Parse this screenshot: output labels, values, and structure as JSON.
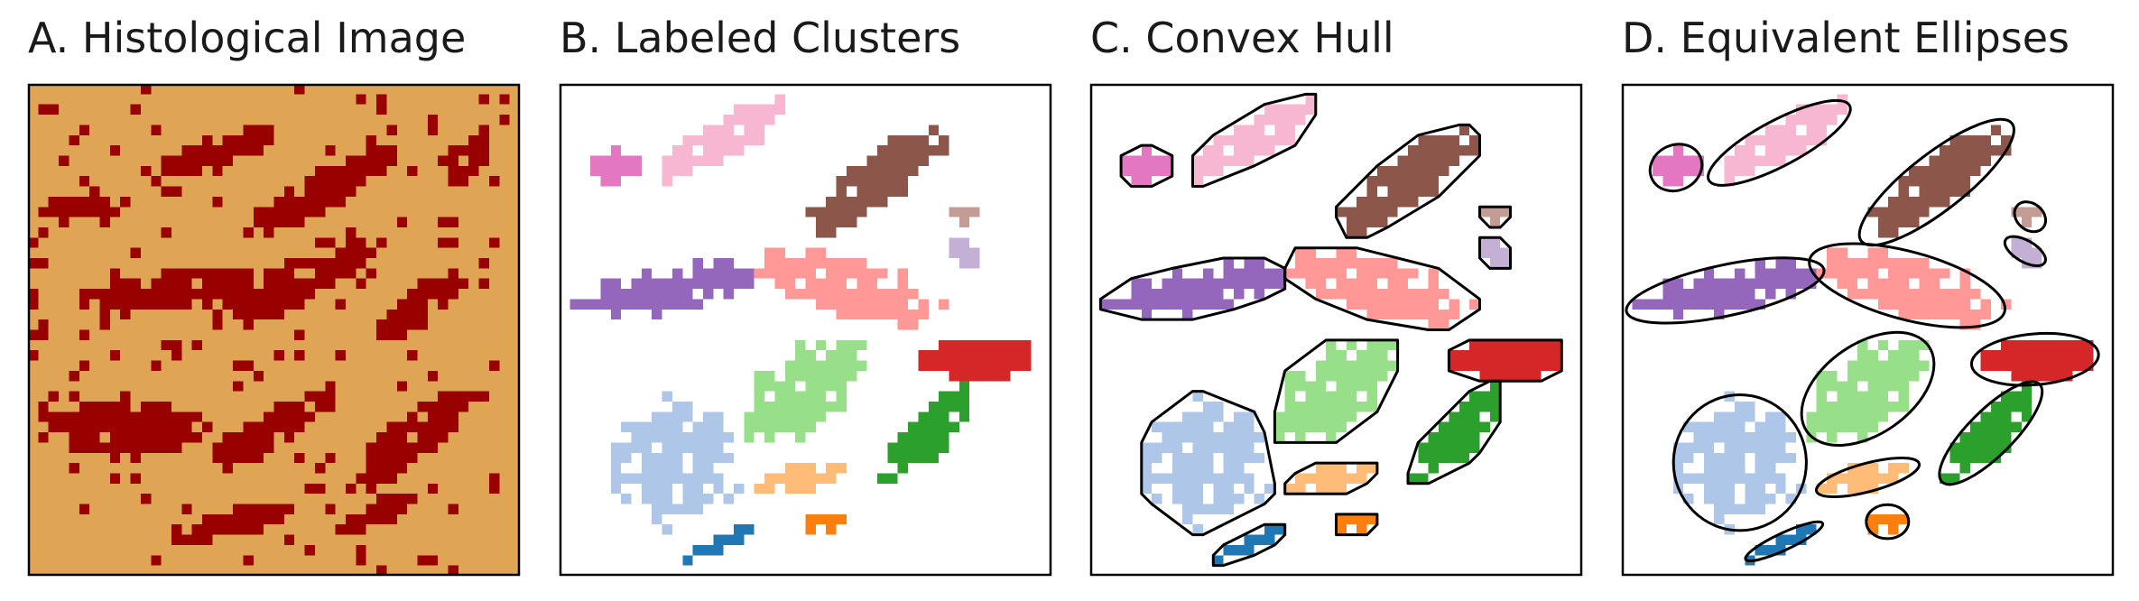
{
  "figure": {
    "panels": [
      {
        "id": "A",
        "title": "A. Histological Image"
      },
      {
        "id": "B",
        "title": "B. Labeled Clusters"
      },
      {
        "id": "C",
        "title": "C. Convex Hull"
      },
      {
        "id": "D",
        "title": "D. Equivalent Ellipses"
      }
    ]
  },
  "chart_data": [
    {
      "type": "heatmap",
      "title": "A. Histological Image",
      "grid": false,
      "colors": {
        "background": "#e0a455",
        "foreground": "#990000"
      },
      "blobs": [
        {
          "x": 0.38,
          "y": 0.14,
          "w": 0.28,
          "h": 0.07,
          "angle": -20
        },
        {
          "x": 0.6,
          "y": 0.22,
          "w": 0.34,
          "h": 0.08,
          "angle": -30
        },
        {
          "x": 0.3,
          "y": 0.42,
          "w": 0.38,
          "h": 0.08,
          "angle": -8
        },
        {
          "x": 0.55,
          "y": 0.4,
          "w": 0.36,
          "h": 0.09,
          "angle": -25
        },
        {
          "x": 0.8,
          "y": 0.45,
          "w": 0.22,
          "h": 0.07,
          "angle": -35
        },
        {
          "x": 0.2,
          "y": 0.7,
          "w": 0.3,
          "h": 0.12,
          "angle": 0
        },
        {
          "x": 0.5,
          "y": 0.7,
          "w": 0.3,
          "h": 0.08,
          "angle": -30
        },
        {
          "x": 0.78,
          "y": 0.72,
          "w": 0.3,
          "h": 0.09,
          "angle": -40
        },
        {
          "x": 0.4,
          "y": 0.9,
          "w": 0.26,
          "h": 0.05,
          "angle": -15
        },
        {
          "x": 0.9,
          "y": 0.15,
          "w": 0.14,
          "h": 0.06,
          "angle": -60
        },
        {
          "x": 0.12,
          "y": 0.25,
          "w": 0.18,
          "h": 0.05,
          "angle": -10
        },
        {
          "x": 0.7,
          "y": 0.88,
          "w": 0.2,
          "h": 0.05,
          "angle": -25
        }
      ]
    },
    {
      "type": "scatter",
      "title": "B. Labeled Clusters",
      "clusters": [
        {
          "name": "c0",
          "color": "#e377c2",
          "cx": 0.11,
          "cy": 0.17,
          "w": 0.1,
          "h": 0.08,
          "angle": -25
        },
        {
          "name": "c1",
          "color": "#f7b6d2",
          "cx": 0.32,
          "cy": 0.12,
          "w": 0.3,
          "h": 0.08,
          "angle": -28
        },
        {
          "name": "c2",
          "color": "#8c564b",
          "cx": 0.64,
          "cy": 0.2,
          "w": 0.36,
          "h": 0.1,
          "angle": -38
        },
        {
          "name": "c3",
          "color": "#c49c94",
          "cx": 0.83,
          "cy": 0.27,
          "w": 0.05,
          "h": 0.06,
          "angle": -50
        },
        {
          "name": "c4",
          "color": "#c5b0d5",
          "cx": 0.82,
          "cy": 0.34,
          "w": 0.04,
          "h": 0.08,
          "angle": -60
        },
        {
          "name": "c5",
          "color": "#9467bd",
          "cx": 0.21,
          "cy": 0.42,
          "w": 0.38,
          "h": 0.09,
          "angle": -12
        },
        {
          "name": "c6",
          "color": "#ff9896",
          "cx": 0.58,
          "cy": 0.41,
          "w": 0.38,
          "h": 0.12,
          "angle": 15
        },
        {
          "name": "c7",
          "color": "#d62728",
          "cx": 0.84,
          "cy": 0.56,
          "w": 0.24,
          "h": 0.09,
          "angle": -5
        },
        {
          "name": "c8",
          "color": "#98df8a",
          "cx": 0.5,
          "cy": 0.62,
          "w": 0.28,
          "h": 0.16,
          "angle": -35
        },
        {
          "name": "c9",
          "color": "#2ca02c",
          "cx": 0.75,
          "cy": 0.71,
          "w": 0.26,
          "h": 0.08,
          "angle": -45
        },
        {
          "name": "c10",
          "color": "#aec7e8",
          "cx": 0.24,
          "cy": 0.77,
          "w": 0.25,
          "h": 0.24,
          "angle": 0
        },
        {
          "name": "c11",
          "color": "#ffbb78",
          "cx": 0.5,
          "cy": 0.8,
          "w": 0.2,
          "h": 0.05,
          "angle": -15
        },
        {
          "name": "c12",
          "color": "#ff7f0e",
          "cx": 0.54,
          "cy": 0.89,
          "w": 0.08,
          "h": 0.06,
          "angle": 0
        },
        {
          "name": "c13",
          "color": "#1f77b4",
          "cx": 0.33,
          "cy": 0.93,
          "w": 0.16,
          "h": 0.03,
          "angle": -25
        }
      ]
    },
    {
      "type": "scatter",
      "title": "C. Convex Hull",
      "overlay": "convex-hull",
      "outline_color": "#000000"
    },
    {
      "type": "scatter",
      "title": "D. Equivalent Ellipses",
      "overlay": "ellipse",
      "outline_color": "#000000"
    }
  ]
}
